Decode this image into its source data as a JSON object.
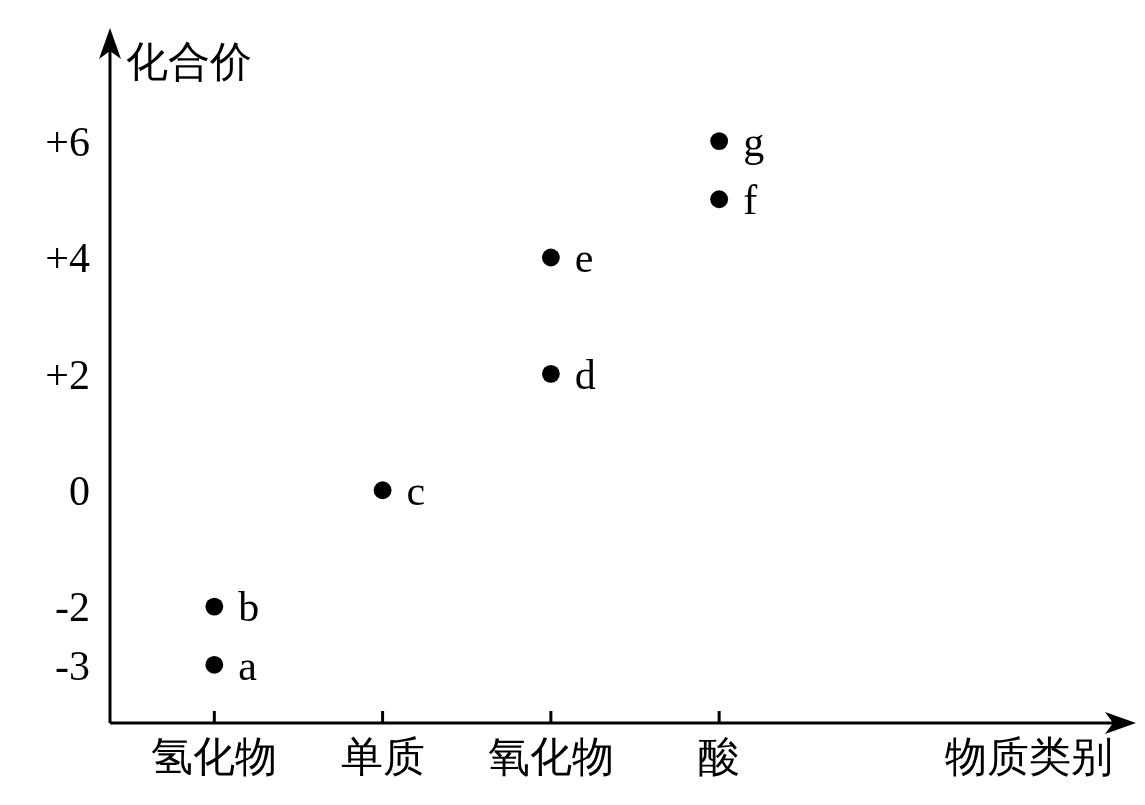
{
  "chart_data": {
    "type": "scatter",
    "xlabel": "物质类别",
    "ylabel": "化合价",
    "categories": [
      "氢化物",
      "单质",
      "氧化物",
      "酸"
    ],
    "series": [
      {
        "type": "scatter",
        "color": "#000000",
        "x": [
          "氢化物",
          "氢化物",
          "单质",
          "氧化物",
          "氧化物",
          "酸",
          "酸"
        ],
        "values": [
          -3,
          -2,
          0,
          2,
          4,
          5,
          6
        ]
      }
    ],
    "ylim": [
      -4,
      7.6
    ],
    "yticks": [
      -3,
      -2,
      0,
      {
        "value": 2,
        "label": "+2"
      },
      {
        "value": 4,
        "label": "+4"
      },
      {
        "value": 6,
        "label": "+6"
      }
    ],
    "marker": "circle",
    "grid": false,
    "annotations": [
      {
        "text": "a",
        "x": "氢化物",
        "y": -3
      },
      {
        "text": "b",
        "x": "氢化物",
        "y": -2
      },
      {
        "text": "c",
        "x": "单质",
        "y": 0
      },
      {
        "text": "d",
        "x": "氧化物",
        "y": 2
      },
      {
        "text": "e",
        "x": "氧化物",
        "y": 4
      },
      {
        "text": "f",
        "x": "酸",
        "y": 5
      },
      {
        "text": "g",
        "x": "酸",
        "y": 6
      }
    ]
  }
}
